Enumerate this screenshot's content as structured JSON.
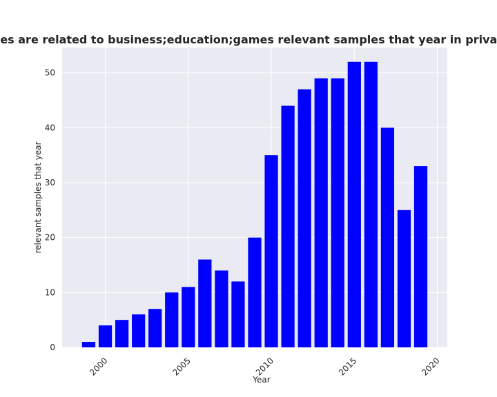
{
  "chart_data": {
    "type": "bar",
    "title": "Categories are related to business;education;games relevant samples that year in privacy policies",
    "xlabel": "Year",
    "ylabel": "relevant samples that year",
    "x": [
      1999,
      2000,
      2001,
      2002,
      2003,
      2004,
      2005,
      2006,
      2007,
      2008,
      2009,
      2010,
      2011,
      2012,
      2013,
      2014,
      2015,
      2016,
      2017,
      2018,
      2019
    ],
    "values": [
      1,
      4,
      5,
      6,
      7,
      10,
      11,
      16,
      14,
      12,
      20,
      35,
      44,
      47,
      49,
      49,
      52,
      52,
      40,
      25,
      33
    ],
    "xlim": [
      1997.4,
      2020.6
    ],
    "ylim": [
      0,
      54.6
    ],
    "xticks": [
      2000,
      2005,
      2010,
      2015,
      2020
    ],
    "yticks": [
      0,
      10,
      20,
      30,
      40,
      50
    ],
    "grid": true,
    "bar_color": "#0000ff",
    "background_color": "#eaeaf2",
    "grid_color": "#ffffff"
  }
}
